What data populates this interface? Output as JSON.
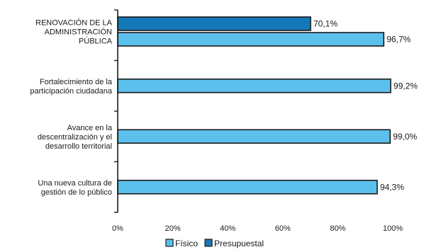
{
  "chart_data": {
    "type": "bar",
    "orientation": "horizontal",
    "categories": [
      [
        "RENOVACIÓN DE LA",
        "ADMINISTRACIÓN",
        "PÚBLICA"
      ],
      [
        "Fortalecimiento de la",
        "participación ciudadana"
      ],
      [
        "Avance en la",
        "descentralización y el",
        "desarrollo  territorial"
      ],
      [
        "Una nueva cultura de",
        "gestión de lo público"
      ]
    ],
    "series": [
      {
        "name": "Físico",
        "color": "#5bc0eb",
        "values": [
          96.7,
          99.2,
          99.0,
          94.3
        ],
        "value_labels": [
          "96,7%",
          "99,2%",
          "99,0%",
          "94,3%"
        ]
      },
      {
        "name": "Presupuestal",
        "color": "#1479b8",
        "values": [
          70.1,
          null,
          null,
          null
        ],
        "value_labels": [
          "70,1%",
          "",
          "",
          ""
        ]
      }
    ],
    "xlim": [
      0,
      100
    ],
    "x_ticks": [
      0,
      20,
      40,
      60,
      80,
      100
    ],
    "x_tick_labels": [
      "0%",
      "20%",
      "40%",
      "60%",
      "80%",
      "100%"
    ],
    "title": "",
    "xlabel": "",
    "ylabel": "",
    "grid": false,
    "legend_position": "bottom"
  }
}
